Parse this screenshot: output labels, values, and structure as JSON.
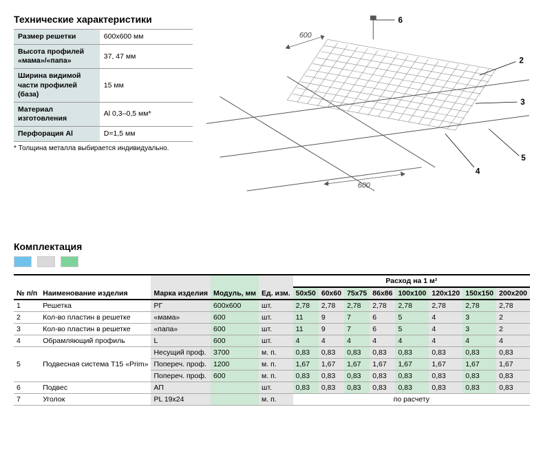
{
  "specs": {
    "title": "Технические характеристики",
    "rows": [
      {
        "label": "Размер решетки",
        "value": "600x600 мм"
      },
      {
        "label": "Высота профилей «мама»/«папа»",
        "value": "37, 47 мм"
      },
      {
        "label": "Ширина видимой части профилей (база)",
        "value": "15 мм"
      },
      {
        "label": "Материал изготовления",
        "value": "Al 0,3–0,5 мм*"
      },
      {
        "label": "Перфорация Al",
        "value": "D=1,5 мм"
      }
    ],
    "footnote": "* Толщина металла выбирается индивидуально."
  },
  "diagram": {
    "callouts": [
      "6",
      "2",
      "3",
      "5",
      "4"
    ],
    "dim_a": "600",
    "dim_b": "600",
    "line_color": "#555555",
    "grid_color": "#888888"
  },
  "swatches": {
    "colors": [
      "#6fc2ec",
      "#d9d9d9",
      "#7ed39b"
    ]
  },
  "comp": {
    "title": "Комплектация",
    "col_no": "№ п/п",
    "col_name": "Наименование изделия",
    "col_brand": "Марка изделия",
    "col_module": "Модуль, мм",
    "col_unit": "Ед. изм.",
    "col_consumption": "Расход на 1 м²",
    "size_cols": [
      "50x50",
      "60x60",
      "75x75",
      "86x86",
      "100x100",
      "120x120",
      "150x150",
      "200x200"
    ],
    "rows": [
      {
        "no": "1",
        "name": "Решетка",
        "brand": "РГ",
        "module": "600x600",
        "unit": "шт.",
        "shade": "blue",
        "vals": [
          "2,78",
          "2,78",
          "2,78",
          "2,78",
          "2,78",
          "2,78",
          "2,78",
          "2,78"
        ]
      },
      {
        "no": "2",
        "name": "Кол-во пластин в решетке",
        "brand": "«мама»",
        "module": "600",
        "unit": "шт.",
        "shade": "gray",
        "vals": [
          "11",
          "9",
          "7",
          "6",
          "5",
          "4",
          "3",
          "2"
        ]
      },
      {
        "no": "3",
        "name": "Кол-во пластин в решетке",
        "brand": "«папа»",
        "module": "600",
        "unit": "шт.",
        "shade": "green",
        "vals": [
          "11",
          "9",
          "7",
          "6",
          "5",
          "4",
          "3",
          "2"
        ]
      },
      {
        "no": "4",
        "name": "Обрамляющий профиль",
        "brand": "L",
        "module": "600",
        "unit": "шт.",
        "shade": "gray",
        "vals": [
          "4",
          "4",
          "4",
          "4",
          "4",
          "4",
          "4",
          "4"
        ]
      },
      {
        "no": "5",
        "name": "Подвесная система T15 «Prim»",
        "brand": "Несущий проф.",
        "module": "3700",
        "unit": "м. п.",
        "shade": "green",
        "vals": [
          "0,83",
          "0,83",
          "0,83",
          "0,83",
          "0,83",
          "0,83",
          "0,83",
          "0,83"
        ],
        "rowspan": 3
      },
      {
        "no": "",
        "name": "",
        "brand": "Попереч. проф.",
        "module": "1200",
        "unit": "м. п.",
        "shade": "gray",
        "vals": [
          "1,67",
          "1,67",
          "1,67",
          "1,67",
          "1,67",
          "1,67",
          "1,67",
          "1,67"
        ],
        "sub": true
      },
      {
        "no": "",
        "name": "",
        "brand": "Попереч. проф.",
        "module": "600",
        "unit": "м. п.",
        "shade": "green",
        "vals": [
          "0,83",
          "0,83",
          "0,83",
          "0,83",
          "0,83",
          "0,83",
          "0,83",
          "0,83"
        ],
        "sub": true
      },
      {
        "no": "6",
        "name": "Подвес",
        "brand": "АП",
        "module": "",
        "unit": "шт.",
        "shade": "gray",
        "vals": [
          "0,83",
          "0,83",
          "0,83",
          "0,83",
          "0,83",
          "0,83",
          "0,83",
          "0,83"
        ]
      },
      {
        "no": "7",
        "name": "Уголок",
        "brand": "PL 19x24",
        "module": "",
        "unit": "м. п.",
        "shade": "",
        "merged": "по расчету"
      }
    ]
  }
}
